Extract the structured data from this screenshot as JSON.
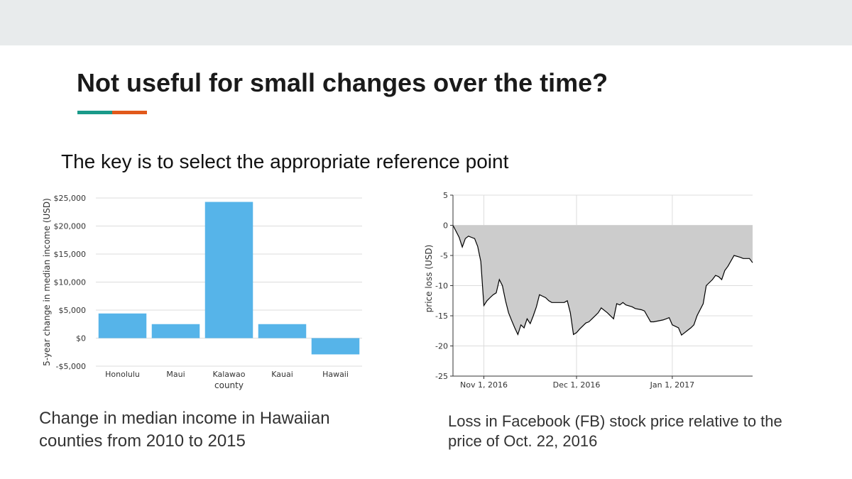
{
  "slide": {
    "title": "Not useful for small changes over the time?",
    "subtitle": "The key is to select the appropriate reference point",
    "accent_colors": [
      "#1a9a8a",
      "#e1591b"
    ]
  },
  "captions": {
    "left": "Change in median income in Hawaiian counties from 2010 to 2015",
    "right": "Loss in Facebook (FB) stock price relative to the price of Oct. 22, 2016"
  },
  "chart_data": [
    {
      "type": "bar",
      "xlabel": "county",
      "ylabel": "5-year change in median income (USD)",
      "categories": [
        "Honolulu",
        "Maui",
        "Kalawao",
        "Kauai",
        "Hawaii"
      ],
      "values": [
        4400,
        2500,
        24300,
        2500,
        -2900
      ],
      "ylim": [
        -5000,
        25000
      ],
      "yticks": [
        -5000,
        0,
        5000,
        10000,
        15000,
        20000,
        25000
      ],
      "ytick_labels": [
        "-$5,000",
        "$0",
        "$5,000",
        "$10,000",
        "$15,000",
        "$20,000",
        "$25,000"
      ],
      "grid": true,
      "color": "#56b4e9"
    },
    {
      "type": "area",
      "xlabel": "",
      "ylabel": "price loss (USD)",
      "ylim": [
        -25,
        5
      ],
      "yticks": [
        -25,
        -20,
        -15,
        -10,
        -5,
        0,
        5
      ],
      "ytick_labels": [
        "-25",
        "-20",
        "-15",
        "-10",
        "-5",
        "0",
        "5"
      ],
      "xlim": [
        "2016-10-22",
        "2017-01-27"
      ],
      "xticks": [
        "2016-11-01",
        "2016-12-01",
        "2017-01-01"
      ],
      "xtick_labels": [
        "Nov 1, 2016",
        "Dec 1, 2016",
        "Jan 1, 2017"
      ],
      "grid": true,
      "fill_color": "#cccccc",
      "line_color": "#000000",
      "x": [
        "2016-10-22",
        "2016-10-24",
        "2016-10-25",
        "2016-10-26",
        "2016-10-27",
        "2016-10-28",
        "2016-10-29",
        "2016-10-30",
        "2016-10-31",
        "2016-11-01",
        "2016-11-02",
        "2016-11-03",
        "2016-11-04",
        "2016-11-05",
        "2016-11-06",
        "2016-11-07",
        "2016-11-08",
        "2016-11-09",
        "2016-11-10",
        "2016-11-11",
        "2016-11-12",
        "2016-11-13",
        "2016-11-14",
        "2016-11-15",
        "2016-11-16",
        "2016-11-17",
        "2016-11-18",
        "2016-11-19",
        "2016-11-21",
        "2016-11-22",
        "2016-11-23",
        "2016-11-25",
        "2016-11-27",
        "2016-11-28",
        "2016-11-29",
        "2016-11-30",
        "2016-12-01",
        "2016-12-02",
        "2016-12-04",
        "2016-12-05",
        "2016-12-06",
        "2016-12-08",
        "2016-12-09",
        "2016-12-11",
        "2016-12-13",
        "2016-12-14",
        "2016-12-15",
        "2016-12-16",
        "2016-12-17",
        "2016-12-19",
        "2016-12-20",
        "2016-12-22",
        "2016-12-23",
        "2016-12-25",
        "2016-12-26",
        "2016-12-29",
        "2016-12-30",
        "2016-12-31",
        "2017-01-01",
        "2017-01-03",
        "2017-01-04",
        "2017-01-05",
        "2017-01-06",
        "2017-01-07",
        "2017-01-08",
        "2017-01-09",
        "2017-01-11",
        "2017-01-12",
        "2017-01-14",
        "2017-01-15",
        "2017-01-16",
        "2017-01-17",
        "2017-01-18",
        "2017-01-19",
        "2017-01-21",
        "2017-01-23",
        "2017-01-24",
        "2017-01-26",
        "2017-01-27"
      ],
      "y": [
        0,
        -2,
        -3.6,
        -2.2,
        -1.8,
        -2,
        -2.2,
        -3.5,
        -6,
        -13.3,
        -12.5,
        -12,
        -11.5,
        -11.2,
        -9,
        -10,
        -12.5,
        -14.5,
        -15.8,
        -17,
        -18.1,
        -16.5,
        -17,
        -15.5,
        -16.3,
        -15,
        -13.5,
        -11.5,
        -12,
        -12.5,
        -12.8,
        -12.8,
        -12.8,
        -12.5,
        -14.5,
        -18.1,
        -17.8,
        -17.2,
        -16.2,
        -16,
        -15.5,
        -14.5,
        -13.7,
        -14.5,
        -15.5,
        -13,
        -13.2,
        -12.8,
        -13.2,
        -13.5,
        -13.8,
        -14,
        -14.2,
        -16,
        -16,
        -15.7,
        -15.5,
        -15.3,
        -16.5,
        -17,
        -18.2,
        -17.8,
        -17.4,
        -17,
        -16.5,
        -15,
        -13,
        -10,
        -9,
        -8.3,
        -8.5,
        -9,
        -7.5,
        -6.8,
        -5,
        -5.3,
        -5.5,
        -5.5,
        -6.2
      ]
    }
  ]
}
